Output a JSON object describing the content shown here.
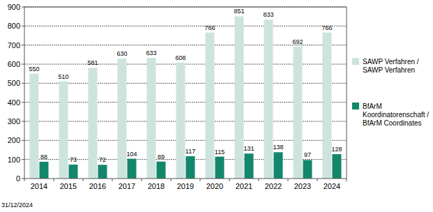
{
  "chart_data": {
    "type": "bar",
    "categories": [
      "2014",
      "2015",
      "2016",
      "2017",
      "2018",
      "2019",
      "2020",
      "2021",
      "2022",
      "2023",
      "2024"
    ],
    "series": [
      {
        "name": "SAWP Verfahren / SAWP Verfahren",
        "color": "#cde4de",
        "values": [
          550,
          510,
          581,
          630,
          633,
          608,
          766,
          851,
          833,
          692,
          766
        ]
      },
      {
        "name": "BfArM Koordinatorenschaft / BfArM Coordinates",
        "color": "#13876c",
        "values": [
          88,
          73,
          72,
          104,
          89,
          117,
          115,
          131,
          138,
          97,
          128
        ]
      }
    ],
    "ylim": [
      0,
      900
    ],
    "yticks": [
      0,
      100,
      200,
      300,
      400,
      500,
      600,
      700,
      800,
      900
    ],
    "grid": true,
    "legend": "right",
    "data_labels": true,
    "annotations": [
      "31/12/2024"
    ]
  }
}
